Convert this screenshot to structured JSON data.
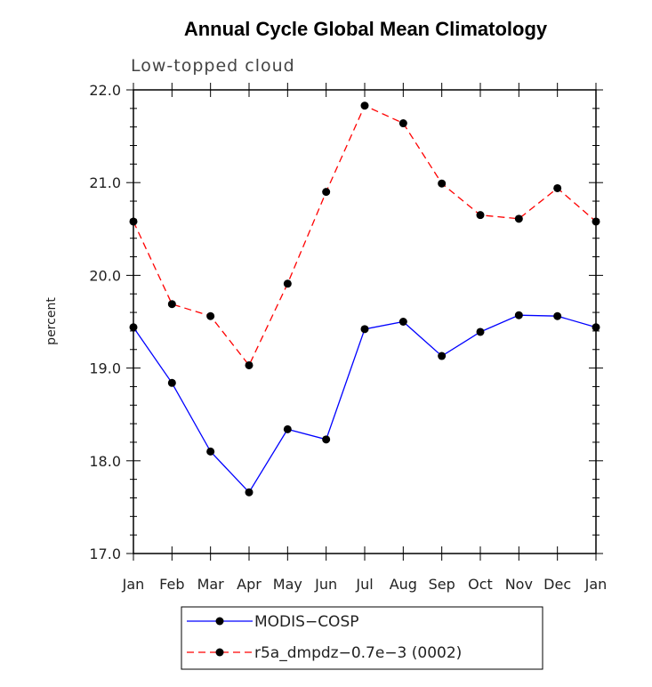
{
  "chart_data": {
    "type": "line",
    "title": "Annual Cycle Global Mean Climatology",
    "subtitle": "Low-topped cloud",
    "xlabel": "",
    "ylabel": "percent",
    "categories": [
      "Jan",
      "Feb",
      "Mar",
      "Apr",
      "May",
      "Jun",
      "Jul",
      "Aug",
      "Sep",
      "Oct",
      "Nov",
      "Dec",
      "Jan"
    ],
    "ylim": [
      17.0,
      22.0
    ],
    "yticks": [
      "17.0",
      "18.0",
      "19.0",
      "20.0",
      "21.0",
      "22.0"
    ],
    "series": [
      {
        "name": "MODIS−COSP",
        "color": "#0000ff",
        "dash": "solid",
        "values": [
          19.44,
          18.84,
          18.1,
          17.66,
          18.34,
          18.23,
          19.42,
          19.5,
          19.13,
          19.39,
          19.57,
          19.56,
          19.44
        ]
      },
      {
        "name": "r5a_dmpdz−0.7e−3 (0002)",
        "color": "#ff0000",
        "dash": "dashed",
        "values": [
          20.58,
          19.69,
          19.56,
          19.03,
          19.91,
          20.9,
          21.83,
          21.64,
          20.99,
          20.65,
          20.61,
          20.94,
          20.58
        ]
      }
    ],
    "legend_position": "bottom"
  }
}
